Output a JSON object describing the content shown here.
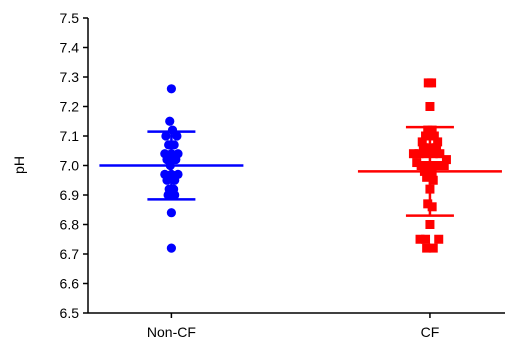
{
  "chart_data": {
    "type": "scatter",
    "title": "",
    "xlabel": "",
    "ylabel": "pH",
    "ylim": [
      6.5,
      7.5
    ],
    "y_ticks": [
      "6.5",
      "6.6",
      "6.7",
      "6.8",
      "6.9",
      "7.0",
      "7.1",
      "7.2",
      "7.3",
      "7.4",
      "7.5"
    ],
    "categories": [
      "Non-CF",
      "CF"
    ],
    "grid": false,
    "legend": "none",
    "series": [
      {
        "color": "#0000ff",
        "marker": "circle",
        "category_index": 0,
        "mean": 7.0,
        "sd_upper": 7.115,
        "sd_lower": 6.885,
        "points": [
          [
            0.0,
            7.26
          ],
          [
            -0.03,
            7.15
          ],
          [
            0.02,
            7.12
          ],
          [
            -0.1,
            7.1
          ],
          [
            0.1,
            7.1
          ],
          [
            -0.05,
            7.07
          ],
          [
            0.05,
            7.07
          ],
          [
            -0.12,
            7.04
          ],
          [
            0.0,
            7.04
          ],
          [
            0.12,
            7.04
          ],
          [
            -0.08,
            7.02
          ],
          [
            0.08,
            7.02
          ],
          [
            -0.02,
            7.0
          ],
          [
            -0.12,
            6.97
          ],
          [
            0.0,
            6.97
          ],
          [
            0.12,
            6.97
          ],
          [
            -0.08,
            6.95
          ],
          [
            0.06,
            6.95
          ],
          [
            -0.04,
            6.92
          ],
          [
            0.04,
            6.92
          ],
          [
            -0.06,
            6.9
          ],
          [
            0.06,
            6.9
          ],
          [
            0.0,
            6.84
          ],
          [
            0.0,
            6.72
          ]
        ]
      },
      {
        "color": "#ff0000",
        "marker": "square",
        "category_index": 1,
        "mean": 6.98,
        "sd_upper": 7.13,
        "sd_lower": 6.83,
        "points": [
          [
            -0.03,
            7.28
          ],
          [
            0.03,
            7.28
          ],
          [
            0.0,
            7.2
          ],
          [
            -0.04,
            7.12
          ],
          [
            0.04,
            7.12
          ],
          [
            -0.08,
            7.1
          ],
          [
            0.08,
            7.1
          ],
          [
            -0.14,
            7.08
          ],
          [
            0.14,
            7.08
          ],
          [
            -0.12,
            7.06
          ],
          [
            0.0,
            7.06
          ],
          [
            0.12,
            7.06
          ],
          [
            -0.3,
            7.04
          ],
          [
            -0.2,
            7.04
          ],
          [
            -0.06,
            7.04
          ],
          [
            0.06,
            7.04
          ],
          [
            0.18,
            7.04
          ],
          [
            0.3,
            7.02
          ],
          [
            -0.24,
            7.01
          ],
          [
            -0.16,
            7.0
          ],
          [
            -0.04,
            7.0
          ],
          [
            0.1,
            7.0
          ],
          [
            0.2,
            7.0
          ],
          [
            0.26,
            7.0
          ],
          [
            -0.1,
            6.98
          ],
          [
            0.04,
            6.97
          ],
          [
            -0.06,
            6.96
          ],
          [
            0.06,
            6.95
          ],
          [
            0.0,
            6.92
          ],
          [
            -0.04,
            6.87
          ],
          [
            0.04,
            6.86
          ],
          [
            0.0,
            6.8
          ],
          [
            -0.18,
            6.75
          ],
          [
            -0.08,
            6.75
          ],
          [
            0.16,
            6.75
          ],
          [
            -0.06,
            6.72
          ],
          [
            0.06,
            6.72
          ]
        ]
      }
    ]
  }
}
